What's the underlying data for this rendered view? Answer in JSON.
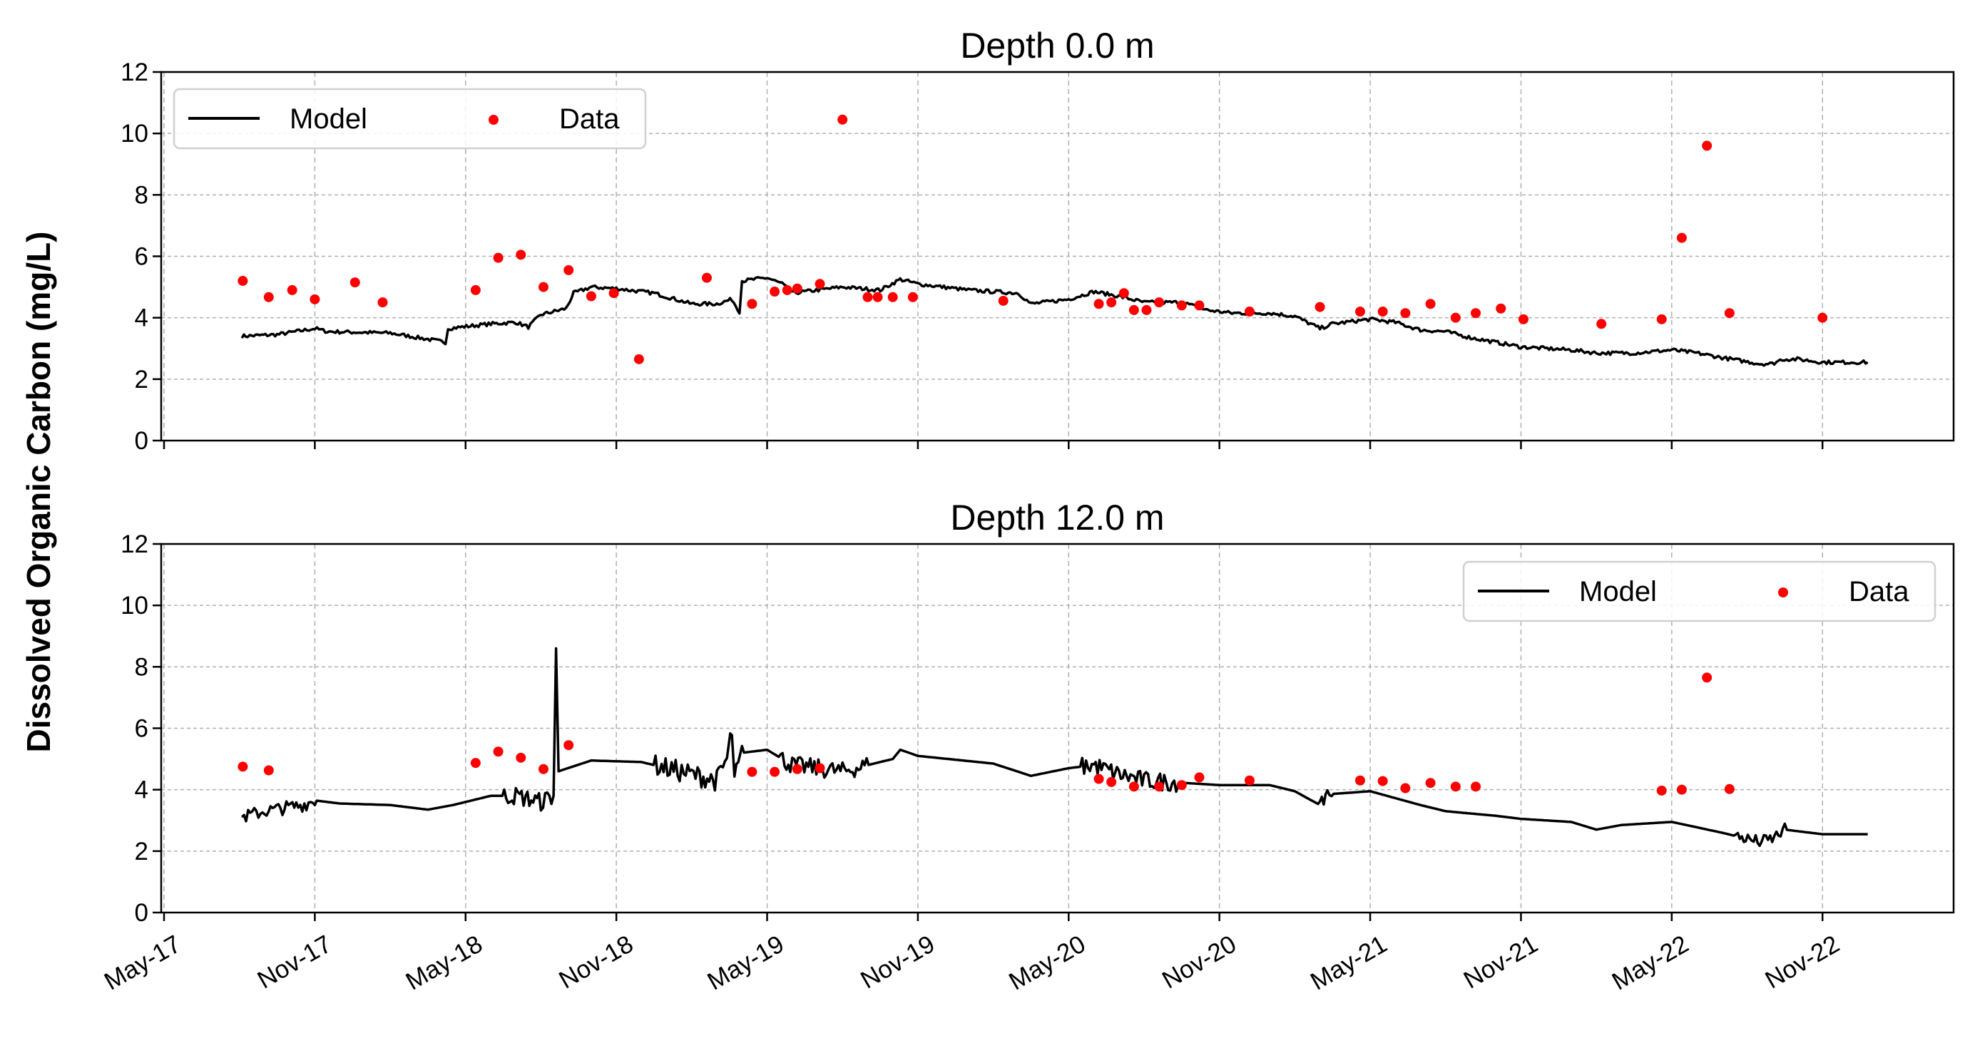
{
  "chart_data": [
    {
      "type": "line",
      "title": "Depth 0.0 m",
      "xlabel": "",
      "ylabel": "Dissolved Organic Carbon (mg/L)",
      "ylim": [
        0,
        12
      ],
      "yticks": [
        "0",
        "2",
        "4",
        "6",
        "8",
        "10",
        "12"
      ],
      "xticks": [
        "May-17",
        "Nov-17",
        "May-18",
        "Nov-18",
        "May-19",
        "Nov-19",
        "May-20",
        "Nov-20",
        "May-21",
        "Nov-21",
        "May-22",
        "Nov-22"
      ],
      "grid": true,
      "legend": {
        "placement": "upper-left",
        "entries": [
          "Model",
          "Data"
        ]
      },
      "series": [
        {
          "name": "Model",
          "kind": "line",
          "color": "#000000",
          "points": [
            [
              "2017-08-04",
              3.4
            ],
            [
              "2017-09-16",
              3.45
            ],
            [
              "2017-11-01",
              3.65
            ],
            [
              "2017-11-16",
              3.55
            ],
            [
              "2018-02-01",
              3.5
            ],
            [
              "2018-03-16",
              3.3
            ],
            [
              "2018-04-07",
              3.2
            ],
            [
              "2018-04-10",
              3.65
            ],
            [
              "2018-06-01",
              3.8
            ],
            [
              "2018-07-01",
              3.85
            ],
            [
              "2018-07-16",
              3.7
            ],
            [
              "2018-08-01",
              4.1
            ],
            [
              "2018-09-01",
              4.3
            ],
            [
              "2018-09-10",
              4.8
            ],
            [
              "2018-10-01",
              5.0
            ],
            [
              "2018-11-01",
              4.95
            ],
            [
              "2018-12-16",
              4.8
            ],
            [
              "2019-02-01",
              4.45
            ],
            [
              "2019-03-01",
              4.45
            ],
            [
              "2019-03-19",
              4.6
            ],
            [
              "2019-03-28",
              4.2
            ],
            [
              "2019-04-01",
              5.2
            ],
            [
              "2019-05-01",
              5.3
            ],
            [
              "2019-05-19",
              5.1
            ],
            [
              "2019-06-01",
              4.8
            ],
            [
              "2019-08-01",
              5.0
            ],
            [
              "2019-09-16",
              4.9
            ],
            [
              "2019-10-10",
              5.25
            ],
            [
              "2019-11-01",
              5.1
            ],
            [
              "2020-01-01",
              4.9
            ],
            [
              "2020-03-01",
              4.8
            ],
            [
              "2020-03-16",
              4.45
            ],
            [
              "2020-05-01",
              4.6
            ],
            [
              "2020-06-01",
              4.85
            ],
            [
              "2020-07-01",
              4.7
            ],
            [
              "2020-08-01",
              4.5
            ],
            [
              "2020-09-16",
              4.5
            ],
            [
              "2020-10-16",
              4.25
            ],
            [
              "2020-11-16",
              4.15
            ],
            [
              "2021-01-01",
              4.15
            ],
            [
              "2021-02-01",
              4.05
            ],
            [
              "2021-03-01",
              3.65
            ],
            [
              "2021-03-16",
              3.8
            ],
            [
              "2021-05-01",
              3.95
            ],
            [
              "2021-06-01",
              3.85
            ],
            [
              "2021-07-01",
              3.6
            ],
            [
              "2021-08-01",
              3.55
            ],
            [
              "2021-09-01",
              3.35
            ],
            [
              "2021-10-01",
              3.2
            ],
            [
              "2021-11-01",
              3.05
            ],
            [
              "2022-01-01",
              2.95
            ],
            [
              "2022-02-01",
              2.85
            ],
            [
              "2022-03-16",
              2.85
            ],
            [
              "2022-05-01",
              2.95
            ],
            [
              "2022-06-01",
              2.85
            ],
            [
              "2022-07-01",
              2.7
            ],
            [
              "2022-08-16",
              2.5
            ],
            [
              "2022-09-01",
              2.5
            ],
            [
              "2022-09-13",
              2.65
            ],
            [
              "2022-10-01",
              2.65
            ],
            [
              "2022-11-01",
              2.55
            ],
            [
              "2022-12-25",
              2.55
            ]
          ]
        },
        {
          "name": "Data",
          "kind": "scatter",
          "color": "#ff0000",
          "points": [
            [
              "2017-08-05",
              5.2
            ],
            [
              "2017-09-06",
              4.67
            ],
            [
              "2017-10-04",
              4.9
            ],
            [
              "2017-11-01",
              4.6
            ],
            [
              "2017-12-19",
              5.15
            ],
            [
              "2018-01-22",
              4.5
            ],
            [
              "2018-05-13",
              4.9
            ],
            [
              "2018-06-10",
              5.95
            ],
            [
              "2018-07-07",
              6.05
            ],
            [
              "2018-08-04",
              5.0
            ],
            [
              "2018-09-04",
              5.55
            ],
            [
              "2018-10-01",
              4.7
            ],
            [
              "2018-10-28",
              4.8
            ],
            [
              "2018-11-28",
              2.65
            ],
            [
              "2019-02-19",
              5.3
            ],
            [
              "2019-04-13",
              4.45
            ],
            [
              "2019-05-10",
              4.85
            ],
            [
              "2019-05-25",
              4.9
            ],
            [
              "2019-06-07",
              4.95
            ],
            [
              "2019-07-04",
              5.1
            ],
            [
              "2019-08-01",
              10.45
            ],
            [
              "2019-09-01",
              4.67
            ],
            [
              "2019-09-13",
              4.67
            ],
            [
              "2019-10-01",
              4.67
            ],
            [
              "2019-10-25",
              4.67
            ],
            [
              "2020-02-13",
              4.55
            ],
            [
              "2020-06-07",
              4.45
            ],
            [
              "2020-06-22",
              4.5
            ],
            [
              "2020-07-07",
              4.8
            ],
            [
              "2020-07-19",
              4.25
            ],
            [
              "2020-08-04",
              4.25
            ],
            [
              "2020-08-19",
              4.5
            ],
            [
              "2020-09-16",
              4.4
            ],
            [
              "2020-10-07",
              4.4
            ],
            [
              "2020-12-07",
              4.2
            ],
            [
              "2021-03-01",
              4.35
            ],
            [
              "2021-04-19",
              4.2
            ],
            [
              "2021-05-16",
              4.2
            ],
            [
              "2021-06-13",
              4.15
            ],
            [
              "2021-07-13",
              4.45
            ],
            [
              "2021-08-13",
              4.0
            ],
            [
              "2021-09-07",
              4.15
            ],
            [
              "2021-10-07",
              4.3
            ],
            [
              "2021-11-04",
              3.95
            ],
            [
              "2022-02-07",
              3.8
            ],
            [
              "2022-04-19",
              3.95
            ],
            [
              "2022-05-13",
              6.6
            ],
            [
              "2022-06-13",
              9.6
            ],
            [
              "2022-07-10",
              4.15
            ],
            [
              "2022-11-01",
              4.0
            ]
          ]
        }
      ]
    },
    {
      "type": "line",
      "title": "Depth 12.0 m",
      "xlabel": "",
      "ylabel": "Dissolved Organic Carbon (mg/L)",
      "ylim": [
        0,
        12
      ],
      "yticks": [
        "0",
        "2",
        "4",
        "6",
        "8",
        "10",
        "12"
      ],
      "xticks": [
        "May-17",
        "Nov-17",
        "May-18",
        "Nov-18",
        "May-19",
        "Nov-19",
        "May-20",
        "Nov-20",
        "May-21",
        "Nov-21",
        "May-22",
        "Nov-22"
      ],
      "grid": true,
      "legend": {
        "placement": "upper-right",
        "entries": [
          "Model",
          "Data"
        ]
      },
      "series": [
        {
          "name": "Model",
          "kind": "line",
          "color": "#000000",
          "points": [
            [
              "2017-08-04",
              3.1
            ],
            [
              "2017-09-01",
              3.3
            ],
            [
              "2017-10-16",
              3.5
            ],
            [
              "2017-11-01",
              3.65
            ],
            [
              "2017-12-01",
              3.55
            ],
            [
              "2018-02-01",
              3.5
            ],
            [
              "2018-03-16",
              3.35
            ],
            [
              "2018-04-16",
              3.5
            ],
            [
              "2018-06-01",
              3.8
            ],
            [
              "2018-07-01",
              3.8
            ],
            [
              "2018-08-01",
              3.6
            ],
            [
              "2018-08-16",
              3.8
            ],
            [
              "2018-08-19",
              8.6
            ],
            [
              "2018-08-22",
              4.6
            ],
            [
              "2018-10-01",
              4.95
            ],
            [
              "2018-12-01",
              4.9
            ],
            [
              "2019-02-01",
              4.5
            ],
            [
              "2019-03-01",
              4.3
            ],
            [
              "2019-03-13",
              5.0
            ],
            [
              "2019-03-19",
              5.9
            ],
            [
              "2019-03-22",
              4.3
            ],
            [
              "2019-04-01",
              5.2
            ],
            [
              "2019-05-01",
              5.3
            ],
            [
              "2019-06-01",
              4.8
            ],
            [
              "2019-08-01",
              4.6
            ],
            [
              "2019-10-01",
              5.0
            ],
            [
              "2019-10-10",
              5.3
            ],
            [
              "2019-11-01",
              5.1
            ],
            [
              "2020-02-01",
              4.85
            ],
            [
              "2020-03-16",
              4.45
            ],
            [
              "2020-05-01",
              4.7
            ],
            [
              "2020-06-01",
              4.8
            ],
            [
              "2020-07-01",
              4.5
            ],
            [
              "2020-08-01",
              4.3
            ],
            [
              "2020-10-01",
              4.2
            ],
            [
              "2020-11-01",
              4.15
            ],
            [
              "2021-01-01",
              4.15
            ],
            [
              "2021-02-01",
              3.95
            ],
            [
              "2021-03-01",
              3.5
            ],
            [
              "2021-03-10",
              3.85
            ],
            [
              "2021-05-01",
              3.95
            ],
            [
              "2021-07-01",
              3.5
            ],
            [
              "2021-08-01",
              3.3
            ],
            [
              "2021-10-01",
              3.15
            ],
            [
              "2021-11-01",
              3.05
            ],
            [
              "2022-01-01",
              2.95
            ],
            [
              "2022-02-01",
              2.7
            ],
            [
              "2022-03-01",
              2.85
            ],
            [
              "2022-05-01",
              2.95
            ],
            [
              "2022-07-01",
              2.6
            ],
            [
              "2022-08-16",
              2.3
            ],
            [
              "2022-09-01",
              2.4
            ],
            [
              "2022-09-16",
              2.7
            ],
            [
              "2022-10-01",
              2.65
            ],
            [
              "2022-11-01",
              2.55
            ],
            [
              "2022-12-25",
              2.55
            ]
          ]
        },
        {
          "name": "Data",
          "kind": "scatter",
          "color": "#ff0000",
          "points": [
            [
              "2017-08-05",
              4.75
            ],
            [
              "2017-09-06",
              4.63
            ],
            [
              "2018-05-13",
              4.87
            ],
            [
              "2018-06-10",
              5.24
            ],
            [
              "2018-07-07",
              5.04
            ],
            [
              "2018-08-04",
              4.67
            ],
            [
              "2018-09-04",
              5.45
            ],
            [
              "2019-04-13",
              4.58
            ],
            [
              "2019-05-10",
              4.58
            ],
            [
              "2019-06-07",
              4.67
            ],
            [
              "2019-07-04",
              4.7
            ],
            [
              "2020-06-07",
              4.35
            ],
            [
              "2020-06-22",
              4.25
            ],
            [
              "2020-07-19",
              4.1
            ],
            [
              "2020-08-19",
              4.1
            ],
            [
              "2020-09-16",
              4.15
            ],
            [
              "2020-10-07",
              4.4
            ],
            [
              "2020-12-07",
              4.3
            ],
            [
              "2021-04-19",
              4.3
            ],
            [
              "2021-05-16",
              4.28
            ],
            [
              "2021-06-13",
              4.05
            ],
            [
              "2021-07-13",
              4.22
            ],
            [
              "2021-08-13",
              4.1
            ],
            [
              "2021-09-07",
              4.1
            ],
            [
              "2022-04-19",
              3.97
            ],
            [
              "2022-05-13",
              4.0
            ],
            [
              "2022-06-13",
              7.65
            ],
            [
              "2022-07-10",
              4.02
            ]
          ]
        }
      ]
    }
  ]
}
